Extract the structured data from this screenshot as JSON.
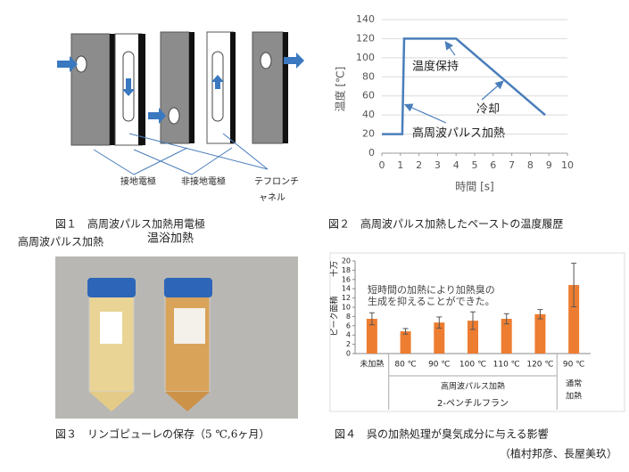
{
  "figure1": {
    "labels": [
      "接地電極",
      "非接地電極",
      "テフロンチ",
      "ャネル"
    ],
    "caption": "図１　高周波パルス加熱用電極"
  },
  "figure3": {
    "labels": [
      "高周波パルス加熱",
      "温浴加熱"
    ],
    "caption": "図３　リンゴピューレの保存（5 ℃,6ヶ月）"
  },
  "chart_data": [
    {
      "type": "line",
      "caption": "図２　高周波パルス加熱したペーストの温度履歴",
      "x": [
        0,
        1.1,
        1.2,
        4,
        8.8
      ],
      "values": [
        20,
        20,
        120,
        120,
        40
      ],
      "color": "#4a7ebb",
      "xlim": [
        0,
        10
      ],
      "xticks": [
        0,
        1,
        2,
        3,
        4,
        5,
        6,
        7,
        8,
        9,
        10
      ],
      "ylim": [
        0,
        140
      ],
      "yticks": [
        0,
        20,
        40,
        60,
        80,
        100,
        120,
        140
      ],
      "grid": true,
      "xlabel": "時間 [s]",
      "ylabel": "温度 [℃]",
      "annotations": [
        "温度保持",
        "冷却",
        "高周波パルス加熱"
      ]
    },
    {
      "type": "bar",
      "caption": "図４　呉の加熱処理が臭気成分に与える影響",
      "categories": [
        "未加熱",
        "80 ℃",
        "90 ℃",
        "100 ℃",
        "110 ℃",
        "120 ℃",
        "90 ℃"
      ],
      "values": [
        7.5,
        4.8,
        6.7,
        7.1,
        7.5,
        8.5,
        14.8
      ],
      "errors": [
        1.3,
        0.6,
        1.2,
        1.9,
        1.1,
        1.0,
        4.7
      ],
      "color": "#ed7d31",
      "ylim": [
        0,
        20
      ],
      "yticks": [
        0,
        2,
        4,
        6,
        8,
        10,
        12,
        14,
        16,
        18,
        20
      ],
      "ylabel": "ピーク面積",
      "unit": "十万",
      "xlabel": "2-ペンチルフラン",
      "group_labels": [
        [
          "高周波パルス加熱"
        ],
        [
          "通常",
          "加熱"
        ]
      ],
      "annotations": [
        "短時間の加熱により加熱臭の",
        "生成を抑えることができた。"
      ]
    }
  ],
  "credit": "（植村邦彦、長屋美玖）"
}
